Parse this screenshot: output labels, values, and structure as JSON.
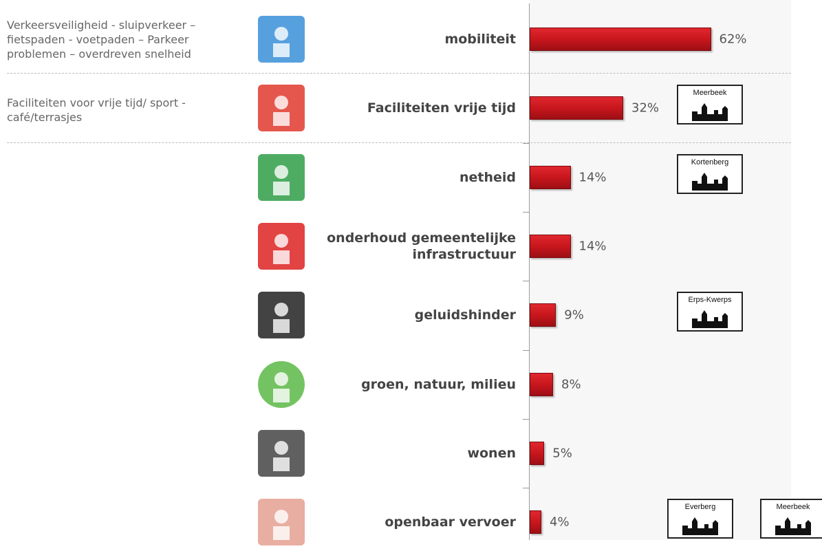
{
  "chart_data": {
    "type": "bar",
    "orientation": "horizontal",
    "categories": [
      "mobiliteit",
      "Faciliteiten vrije tijd",
      "netheid",
      "onderhoud gemeentelijke\ninfrastructuur",
      "geluidshinder",
      "groen, natuur, milieu",
      "wonen",
      "openbaar vervoer"
    ],
    "values": [
      62,
      32,
      14,
      14,
      9,
      8,
      5,
      4
    ],
    "value_labels": [
      "62%",
      "32%",
      "14%",
      "14%",
      "9%",
      "8%",
      "5%",
      "4%"
    ],
    "color": "#c8161d",
    "notes": [
      [
        "Verkeersveiligheid - sluipverkeer –",
        "fietspaden  - voetpaden – Parkeer",
        "problemen – overdreven snelheid"
      ],
      [
        "Faciliteiten voor vrije tijd/ sport -",
        "café/terrasjes"
      ],
      [],
      [],
      [],
      [],
      [],
      []
    ],
    "town_signs": [
      [],
      [
        "Meerbeek"
      ],
      [
        "Kortenberg"
      ],
      [],
      [
        "Erps-Kwerps"
      ],
      [],
      [],
      [
        "Everberg",
        "Meerbeek"
      ]
    ]
  }
}
